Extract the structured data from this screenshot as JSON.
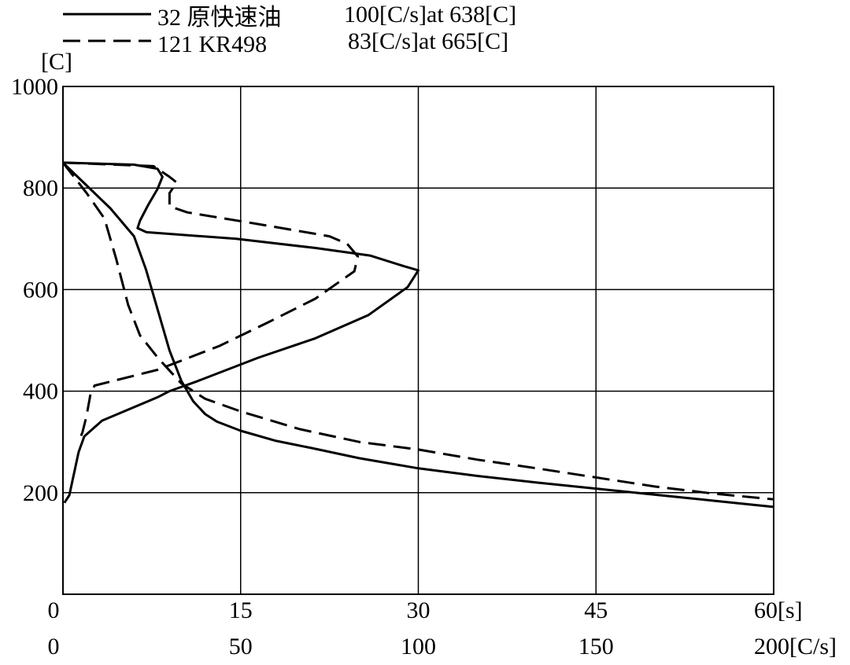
{
  "chart_data": {
    "type": "line",
    "y_label": "[C]",
    "ylim": [
      0,
      1000
    ],
    "yticks": [
      200,
      400,
      600,
      800,
      1000
    ],
    "xlim": [
      0,
      60
    ],
    "xticks": [
      0,
      15,
      30,
      45,
      {
        "value": 60,
        "label": "60[s]"
      }
    ],
    "x2lim": [
      0,
      200
    ],
    "x2ticks": [
      0,
      50,
      100,
      150,
      {
        "value": 200,
        "label": "200[C/s]"
      }
    ],
    "grid": true,
    "series": [
      {
        "name": "32 原快速油",
        "note": "100[C/s]at 638[C]",
        "color": "#000000",
        "dashed": false,
        "x": [
          0,
          2,
          4,
          6,
          7,
          8,
          9,
          10,
          11,
          12,
          13,
          15,
          18,
          21,
          25,
          30,
          35,
          40,
          45,
          50,
          55,
          60
        ],
        "values": [
          850,
          805,
          760,
          705,
          640,
          560,
          480,
          420,
          380,
          355,
          340,
          322,
          302,
          288,
          268,
          248,
          233,
          220,
          208,
          196,
          184,
          172
        ]
      },
      {
        "name": "121 KR498",
        "note": "83[C/s]at 665[C]",
        "color": "#000000",
        "dashed": true,
        "x": [
          0,
          2,
          3.5,
          4.5,
          5.5,
          6.5,
          8,
          10,
          12,
          15,
          20,
          25,
          30,
          35,
          40,
          45,
          50,
          55,
          60
        ],
        "values": [
          850,
          790,
          740,
          660,
          570,
          510,
          466,
          415,
          385,
          360,
          325,
          300,
          285,
          265,
          248,
          230,
          212,
          198,
          187
        ]
      },
      {
        "axis": "x2",
        "color": "#000000",
        "dashed": false,
        "x": [
          0,
          20,
          26.6,
          28,
          26.6,
          24,
          21.7,
          21,
          23.5,
          48.7,
          70.9,
          86.4,
          96,
          100,
          97,
          86,
          71,
          55,
          37.6,
          30,
          26.6,
          11,
          6,
          4.4,
          1.8,
          0.4
        ],
        "values": [
          850,
          846,
          838,
          822,
          798,
          767,
          736,
          721,
          713,
          700,
          682,
          667,
          646,
          638,
          605,
          550,
          504,
          466,
          419,
          400,
          388,
          342,
          311,
          280,
          195,
          180
        ]
      },
      {
        "axis": "x2",
        "color": "#000000",
        "dashed": true,
        "x": [
          0,
          25.5,
          30,
          32,
          30,
          30,
          35,
          55,
          75,
          80,
          83,
          82,
          71,
          57.6,
          44,
          26.6,
          8.9,
          7.8,
          6.6,
          5.5,
          4.4
        ],
        "values": [
          850,
          843,
          822,
          811,
          790,
          764,
          752,
          729,
          705,
          690,
          665,
          636,
          582,
          535,
          489,
          442,
          411,
          396,
          350,
          319,
          300
        ]
      }
    ]
  }
}
